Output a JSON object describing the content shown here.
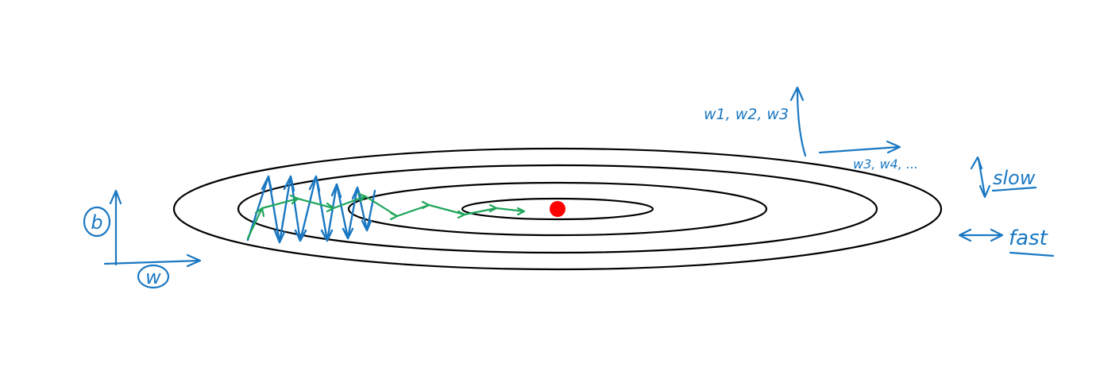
{
  "labels": {
    "b_axis": "b",
    "w_axis": "w",
    "vertical_weights": "w1, w2, w3",
    "horizontal_weights": "w3, w4, ...",
    "slow": "slow",
    "fast": "fast"
  },
  "colors": {
    "contour": "#000000",
    "blue_ink": "#1a78c2",
    "green_ink": "#1fa65a",
    "minimum": "#ff0000"
  }
}
